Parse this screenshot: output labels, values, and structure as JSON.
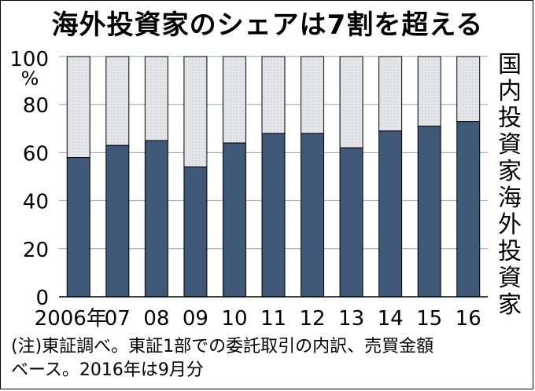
{
  "title": "海外投資家のシェアは7割を超える",
  "note_line1": "(注)東証調べ。東証1部での委託取引の内訳、売買金額",
  "note_line2": "ベース。2016年は9月分",
  "chart_data": {
    "type": "bar",
    "stacked": true,
    "categories": [
      "2006年",
      "07",
      "08",
      "09",
      "10",
      "11",
      "12",
      "13",
      "14",
      "15",
      "16"
    ],
    "series": [
      {
        "name": "海外投資家",
        "values": [
          58,
          63,
          65,
          54,
          64,
          68,
          68,
          62,
          69,
          71,
          73
        ],
        "color": "#3f5878"
      },
      {
        "name": "国内投資家",
        "values": [
          42,
          37,
          35,
          46,
          36,
          32,
          32,
          38,
          31,
          29,
          27
        ],
        "color": "#e4e6ea"
      }
    ],
    "ylim": [
      0,
      100
    ],
    "yticks": [
      0,
      20,
      40,
      60,
      80,
      100
    ],
    "yunit": "%",
    "legend": "right"
  }
}
